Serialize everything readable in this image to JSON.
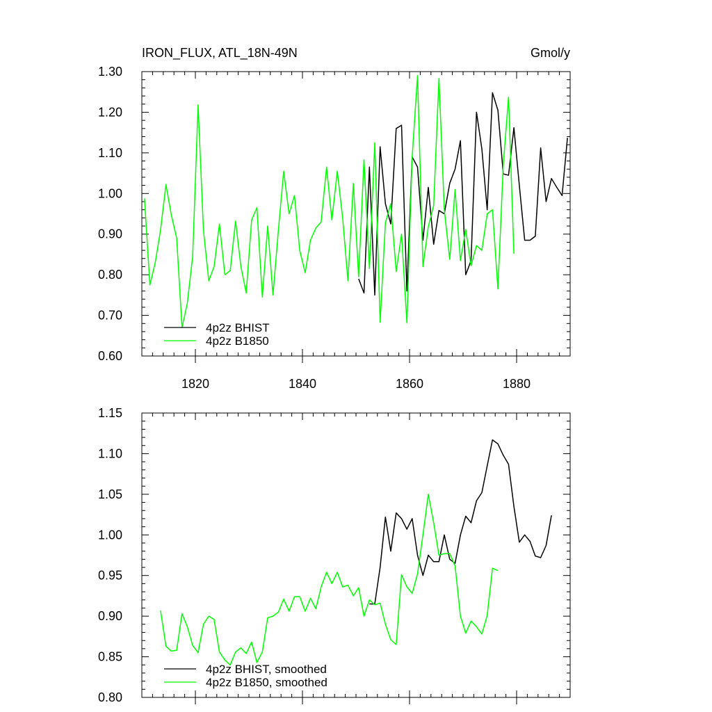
{
  "colors": {
    "bhist": "#000000",
    "b1850": "#00ff00",
    "background": "#ffffff"
  },
  "chart_data": [
    {
      "type": "line",
      "title": "IRON_FLUX, ATL_18N-49N",
      "units": "Gmol/y",
      "xlabel": "",
      "ylabel": "",
      "xlim": [
        1810,
        1890
      ],
      "ylim": [
        0.6,
        1.3
      ],
      "x_ticks": [
        1820,
        1840,
        1860,
        1880
      ],
      "x_tick_labels": [
        "1820",
        "1840",
        "1860",
        "1880"
      ],
      "y_ticks": [
        0.6,
        0.7,
        0.8,
        0.9,
        1.0,
        1.1,
        1.2,
        1.3
      ],
      "y_tick_labels": [
        "0.60",
        "0.70",
        "0.80",
        "0.90",
        "1.00",
        "1.10",
        "1.20",
        "1.30"
      ],
      "legend_position": "bottom-left",
      "series": [
        {
          "name": "4p2z BHIST",
          "color": "#000000",
          "x": [
            1850.5,
            1851.5,
            1852.5,
            1853.5,
            1854.5,
            1855.5,
            1856.5,
            1857.5,
            1858.5,
            1859.5,
            1860.5,
            1861.5,
            1862.5,
            1863.5,
            1864.5,
            1865.5,
            1866.5,
            1867.5,
            1868.5,
            1869.5,
            1870.5,
            1871.5,
            1872.5,
            1873.5,
            1874.5,
            1875.5,
            1876.5,
            1877.5,
            1878.5,
            1879.5,
            1880.5,
            1881.5,
            1882.5,
            1883.5,
            1884.5,
            1885.5,
            1886.5,
            1887.5,
            1888.5,
            1889.5
          ],
          "y": [
            0.79,
            0.755,
            1.065,
            0.75,
            1.115,
            0.975,
            0.925,
            1.16,
            1.168,
            0.76,
            1.09,
            1.065,
            0.885,
            1.015,
            0.875,
            0.958,
            0.95,
            1.025,
            1.06,
            1.13,
            0.8,
            0.835,
            1.2,
            1.11,
            0.96,
            1.248,
            1.205,
            1.048,
            1.045,
            1.162,
            1.02,
            0.885,
            0.885,
            0.895,
            1.112,
            0.98,
            1.037,
            1.015,
            0.995,
            1.137
          ]
        },
        {
          "name": "4p2z B1850",
          "color": "#00ff00",
          "x": [
            1810.5,
            1811.5,
            1812.5,
            1813.5,
            1814.5,
            1815.5,
            1816.5,
            1817.5,
            1818.5,
            1819.5,
            1820.5,
            1821.5,
            1822.5,
            1823.5,
            1824.5,
            1825.5,
            1826.5,
            1827.5,
            1828.5,
            1829.5,
            1830.5,
            1831.5,
            1832.5,
            1833.5,
            1834.5,
            1835.5,
            1836.5,
            1837.5,
            1838.5,
            1839.5,
            1840.5,
            1841.5,
            1842.5,
            1843.5,
            1844.5,
            1845.5,
            1846.5,
            1847.5,
            1848.5,
            1849.5,
            1850.5,
            1851.5,
            1852.5,
            1853.5,
            1854.5,
            1855.5,
            1856.5,
            1857.5,
            1858.5,
            1859.5,
            1860.5,
            1861.5,
            1862.5,
            1863.5,
            1864.5,
            1865.5,
            1866.5,
            1867.5,
            1868.5,
            1869.5,
            1870.5,
            1871.5,
            1872.5,
            1873.5,
            1874.5,
            1875.5,
            1876.5,
            1877.5,
            1878.5,
            1879.5
          ],
          "y": [
            0.988,
            0.775,
            0.83,
            0.91,
            1.022,
            0.948,
            0.89,
            0.67,
            0.73,
            0.845,
            1.218,
            0.91,
            0.785,
            0.82,
            0.925,
            0.8,
            0.81,
            0.932,
            0.82,
            0.755,
            0.935,
            0.965,
            0.745,
            0.92,
            0.75,
            0.91,
            1.055,
            0.95,
            0.995,
            0.86,
            0.805,
            0.885,
            0.915,
            0.93,
            1.065,
            0.935,
            1.055,
            0.94,
            0.785,
            1.025,
            0.795,
            1.083,
            0.815,
            1.125,
            0.683,
            0.928,
            0.975,
            0.808,
            0.9,
            0.682,
            1.09,
            1.29,
            0.82,
            0.918,
            0.97,
            1.283,
            0.96,
            0.838,
            1.01,
            0.835,
            0.912,
            0.822,
            0.872,
            0.86,
            0.95,
            0.96,
            0.765,
            1.07,
            1.237,
            0.852
          ]
        }
      ]
    },
    {
      "type": "line",
      "title": "",
      "xlabel": "",
      "ylabel": "",
      "xlim": [
        1810,
        1890
      ],
      "ylim": [
        0.8,
        1.15
      ],
      "x_ticks": [
        1820,
        1840,
        1860,
        1880
      ],
      "x_tick_labels": [],
      "y_ticks": [
        0.8,
        0.85,
        0.9,
        0.95,
        1.0,
        1.05,
        1.1,
        1.15
      ],
      "y_tick_labels": [
        "0.80",
        "0.85",
        "0.90",
        "0.95",
        "1.00",
        "1.05",
        "1.10",
        "1.15"
      ],
      "legend_position": "bottom-left",
      "series": [
        {
          "name": "4p2z BHIST, smoothed",
          "color": "#000000",
          "x": [
            1852.5,
            1853.5,
            1854.5,
            1855.5,
            1856.5,
            1857.5,
            1858.5,
            1859.5,
            1860.5,
            1861.5,
            1862.5,
            1863.5,
            1864.5,
            1865.5,
            1866.5,
            1867.5,
            1868.5,
            1869.5,
            1870.5,
            1871.5,
            1872.5,
            1873.5,
            1874.5,
            1875.5,
            1876.5,
            1877.5,
            1878.5,
            1879.5,
            1880.5,
            1881.5,
            1882.5,
            1883.5,
            1884.5,
            1885.5,
            1886.5
          ],
          "y": [
            0.915,
            0.915,
            0.96,
            1.022,
            0.98,
            1.027,
            1.02,
            1.007,
            1.02,
            0.975,
            0.95,
            0.975,
            0.967,
            0.967,
            1.0,
            0.97,
            0.965,
            1.0,
            1.023,
            1.015,
            1.042,
            1.052,
            1.085,
            1.117,
            1.112,
            1.098,
            1.087,
            1.035,
            0.991,
            1.0,
            0.992,
            0.974,
            0.972,
            0.987,
            1.024
          ]
        },
        {
          "name": "4p2z B1850, smoothed",
          "color": "#00ff00",
          "x": [
            1813.5,
            1814.5,
            1815.5,
            1816.5,
            1817.5,
            1818.5,
            1819.5,
            1820.5,
            1821.5,
            1822.5,
            1823.5,
            1824.5,
            1825.5,
            1826.5,
            1827.5,
            1828.5,
            1829.5,
            1830.5,
            1831.5,
            1832.5,
            1833.5,
            1834.5,
            1835.5,
            1836.5,
            1837.5,
            1838.5,
            1839.5,
            1840.5,
            1841.5,
            1842.5,
            1843.5,
            1844.5,
            1845.5,
            1846.5,
            1847.5,
            1848.5,
            1849.5,
            1850.5,
            1851.5,
            1852.5,
            1853.5,
            1854.5,
            1855.5,
            1856.5,
            1857.5,
            1858.5,
            1859.5,
            1860.5,
            1861.5,
            1862.5,
            1863.5,
            1864.5,
            1865.5,
            1866.5,
            1867.5,
            1868.5,
            1869.5,
            1870.5,
            1871.5,
            1872.5,
            1873.5,
            1874.5,
            1875.5,
            1876.5
          ],
          "y": [
            0.907,
            0.863,
            0.857,
            0.858,
            0.903,
            0.887,
            0.864,
            0.855,
            0.89,
            0.9,
            0.896,
            0.856,
            0.846,
            0.84,
            0.856,
            0.861,
            0.854,
            0.868,
            0.843,
            0.856,
            0.898,
            0.9,
            0.905,
            0.921,
            0.906,
            0.924,
            0.924,
            0.906,
            0.922,
            0.909,
            0.936,
            0.954,
            0.94,
            0.954,
            0.936,
            0.938,
            0.925,
            0.935,
            0.9,
            0.92,
            0.914,
            0.916,
            0.89,
            0.871,
            0.865,
            0.951,
            0.936,
            0.928,
            0.952,
            1.0,
            1.05,
            1.015,
            0.975,
            0.977,
            0.977,
            0.962,
            0.9,
            0.879,
            0.894,
            0.887,
            0.878,
            0.901,
            0.959,
            0.956
          ]
        }
      ]
    }
  ]
}
